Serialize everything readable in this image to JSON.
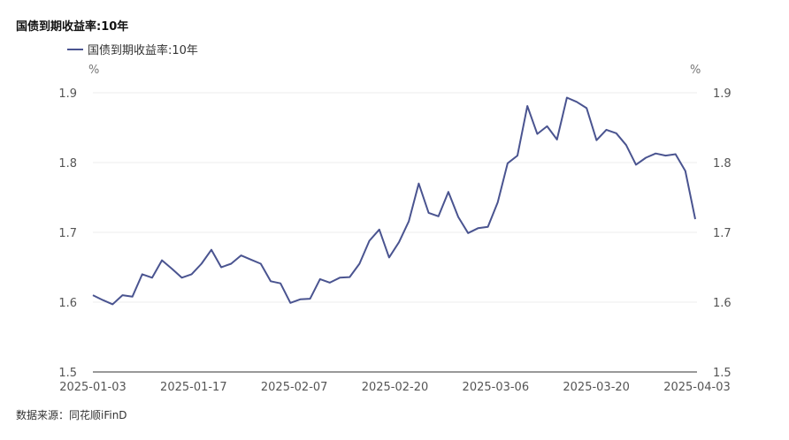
{
  "title": "国债到期收益率:10年",
  "source": "数据来源：同花顺iFinD",
  "chart_data": {
    "type": "line",
    "title": "国债到期收益率:10年",
    "ylabel_left": "%",
    "ylabel_right": "%",
    "ylim": [
      1.5,
      1.9
    ],
    "yticks": [
      "1.5",
      "1.6",
      "1.7",
      "1.8",
      "1.9"
    ],
    "xticks": [
      "2025-01-03",
      "2025-01-17",
      "2025-02-07",
      "2025-02-20",
      "2025-03-06",
      "2025-03-20",
      "2025-04-03"
    ],
    "grid": true,
    "legend_position": "top-left",
    "series": [
      {
        "name": "国债到期收益率:10年",
        "color": "#4a5490",
        "values": [
          1.61,
          1.603,
          1.597,
          1.61,
          1.608,
          1.64,
          1.635,
          1.66,
          1.648,
          1.635,
          1.64,
          1.655,
          1.675,
          1.65,
          1.655,
          1.667,
          1.661,
          1.655,
          1.63,
          1.627,
          1.599,
          1.604,
          1.605,
          1.633,
          1.628,
          1.635,
          1.636,
          1.655,
          1.688,
          1.704,
          1.664,
          1.686,
          1.716,
          1.77,
          1.728,
          1.723,
          1.758,
          1.722,
          1.699,
          1.706,
          1.708,
          1.743,
          1.799,
          1.81,
          1.881,
          1.841,
          1.852,
          1.833,
          1.893,
          1.887,
          1.878,
          1.832,
          1.847,
          1.842,
          1.825,
          1.797,
          1.807,
          1.813,
          1.81,
          1.812,
          1.788,
          1.719
        ]
      }
    ]
  }
}
